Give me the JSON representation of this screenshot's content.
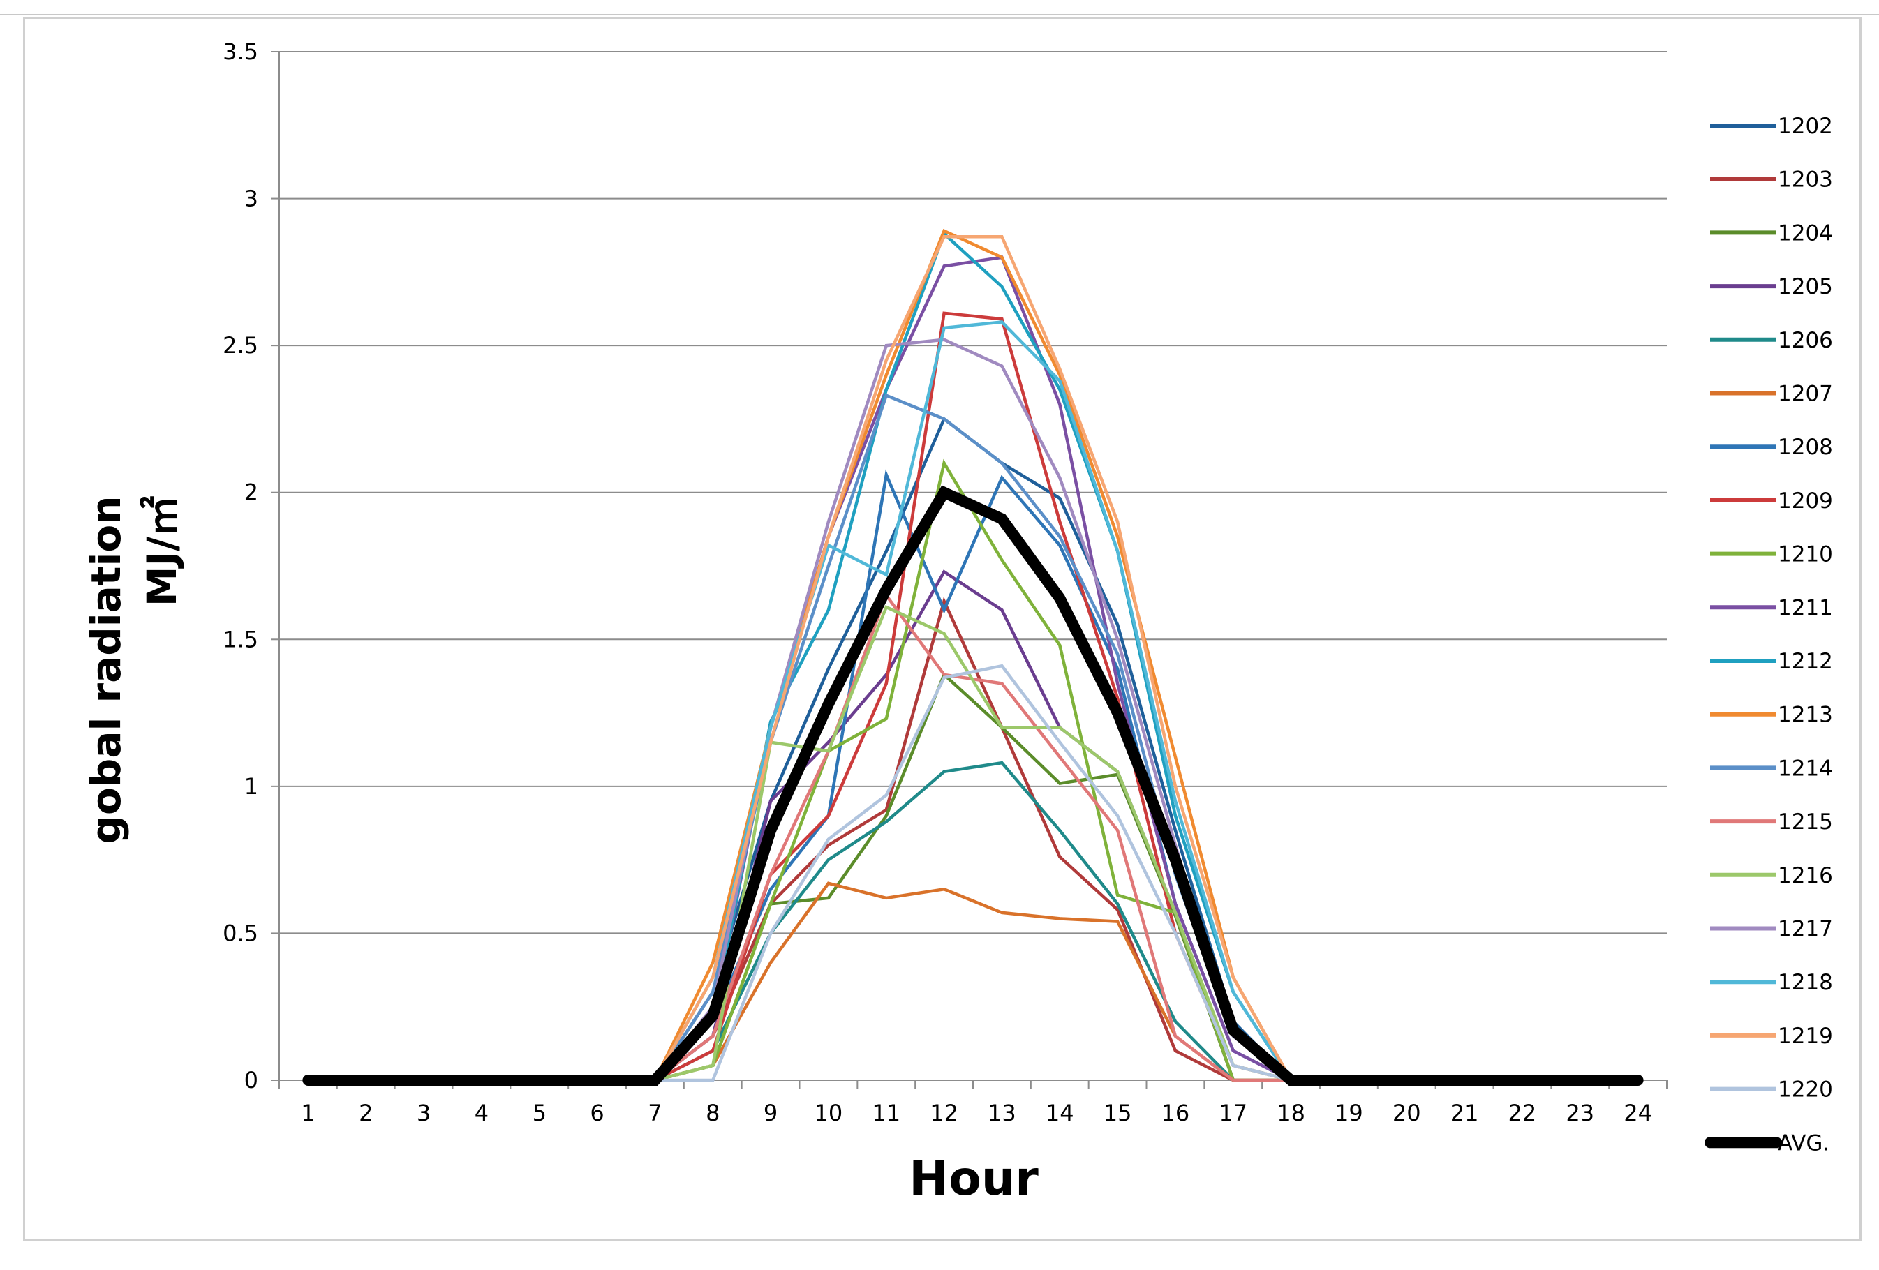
{
  "chart_data": {
    "type": "line",
    "title": "",
    "xlabel": "Hour",
    "ylabel_line1": "gobal radiation",
    "ylabel_line2": "MJ/㎡",
    "x": [
      1,
      2,
      3,
      4,
      5,
      6,
      7,
      8,
      9,
      10,
      11,
      12,
      13,
      14,
      15,
      16,
      17,
      18,
      19,
      20,
      21,
      22,
      23,
      24
    ],
    "xticks": [
      "1",
      "2",
      "3",
      "4",
      "5",
      "6",
      "7",
      "8",
      "9",
      "10",
      "11",
      "12",
      "13",
      "14",
      "15",
      "16",
      "17",
      "18",
      "19",
      "20",
      "21",
      "22",
      "23",
      "24"
    ],
    "ylim": [
      0,
      3.5
    ],
    "yticks": [
      "0",
      "0.5",
      "1",
      "1.5",
      "2",
      "2.5",
      "3",
      "3.5"
    ],
    "grid": "horizontal",
    "legend_position": "right",
    "series": [
      {
        "name": "1202",
        "color": "#1f5f9a",
        "values": [
          0,
          0,
          0,
          0,
          0,
          0,
          0,
          0.3,
          0.95,
          1.4,
          1.8,
          2.25,
          2.1,
          1.98,
          1.55,
          0.85,
          0.2,
          0,
          0,
          0,
          0,
          0,
          0,
          0
        ]
      },
      {
        "name": "1203",
        "color": "#b03a3a",
        "values": [
          0,
          0,
          0,
          0,
          0,
          0,
          0,
          0.15,
          0.6,
          0.8,
          0.92,
          1.63,
          1.2,
          0.76,
          0.58,
          0.1,
          0,
          0,
          0,
          0,
          0,
          0,
          0,
          0
        ]
      },
      {
        "name": "1204",
        "color": "#5b8c2a",
        "values": [
          0,
          0,
          0,
          0,
          0,
          0,
          0,
          0.05,
          0.6,
          0.62,
          0.9,
          1.38,
          1.2,
          1.01,
          1.04,
          0.56,
          0,
          0,
          0,
          0,
          0,
          0,
          0,
          0
        ]
      },
      {
        "name": "1205",
        "color": "#6a3d8f",
        "values": [
          0,
          0,
          0,
          0,
          0,
          0,
          0,
          0.15,
          0.95,
          1.15,
          1.38,
          1.73,
          1.6,
          1.2,
          1.05,
          0.57,
          0,
          0,
          0,
          0,
          0,
          0,
          0,
          0
        ]
      },
      {
        "name": "1206",
        "color": "#1f8a8a",
        "values": [
          0,
          0,
          0,
          0,
          0,
          0,
          0,
          0.1,
          0.5,
          0.75,
          0.88,
          1.05,
          1.08,
          0.85,
          0.6,
          0.2,
          0,
          0,
          0,
          0,
          0,
          0,
          0,
          0
        ]
      },
      {
        "name": "1207",
        "color": "#d9722a",
        "values": [
          0,
          0,
          0,
          0,
          0,
          0,
          0,
          0.05,
          0.4,
          0.67,
          0.62,
          0.65,
          0.57,
          0.55,
          0.54,
          0.15,
          0,
          0,
          0,
          0,
          0,
          0,
          0,
          0
        ]
      },
      {
        "name": "1208",
        "color": "#2e75b6",
        "values": [
          0,
          0,
          0,
          0,
          0,
          0,
          0,
          0.2,
          0.65,
          0.9,
          2.06,
          1.6,
          2.05,
          1.82,
          1.4,
          0.6,
          0.1,
          0,
          0,
          0,
          0,
          0,
          0,
          0
        ]
      },
      {
        "name": "1209",
        "color": "#cc3b3b",
        "values": [
          0,
          0,
          0,
          0,
          0,
          0,
          0,
          0.1,
          0.7,
          0.9,
          1.35,
          2.61,
          2.59,
          1.9,
          1.3,
          0.5,
          0.05,
          0,
          0,
          0,
          0,
          0,
          0,
          0
        ]
      },
      {
        "name": "1210",
        "color": "#7fb23a",
        "values": [
          0,
          0,
          0,
          0,
          0,
          0,
          0,
          0.05,
          0.6,
          1.12,
          1.23,
          2.1,
          1.77,
          1.48,
          0.63,
          0.57,
          0,
          0,
          0,
          0,
          0,
          0,
          0,
          0
        ]
      },
      {
        "name": "1211",
        "color": "#7a4fa3",
        "values": [
          0,
          0,
          0,
          0,
          0,
          0,
          0,
          0.2,
          1.2,
          1.85,
          2.35,
          2.77,
          2.8,
          2.3,
          1.35,
          0.6,
          0.1,
          0,
          0,
          0,
          0,
          0,
          0,
          0
        ]
      },
      {
        "name": "1212",
        "color": "#1fa0c0",
        "values": [
          0,
          0,
          0,
          0,
          0,
          0,
          0,
          0.2,
          1.22,
          1.6,
          2.35,
          2.88,
          2.7,
          2.35,
          1.8,
          0.9,
          0.3,
          0,
          0,
          0,
          0,
          0,
          0,
          0
        ]
      },
      {
        "name": "1213",
        "color": "#f08a30",
        "values": [
          0,
          0,
          0,
          0,
          0,
          0,
          0,
          0.4,
          1.2,
          1.85,
          2.4,
          2.89,
          2.8,
          2.4,
          1.85,
          1.1,
          0.35,
          0,
          0,
          0,
          0,
          0,
          0,
          0
        ]
      },
      {
        "name": "1214",
        "color": "#5b8fc8",
        "values": [
          0,
          0,
          0,
          0,
          0,
          0,
          0,
          0.3,
          1.15,
          1.75,
          2.33,
          2.25,
          2.1,
          1.85,
          1.45,
          0.7,
          0.15,
          0,
          0,
          0,
          0,
          0,
          0,
          0
        ]
      },
      {
        "name": "1215",
        "color": "#e07878",
        "values": [
          0,
          0,
          0,
          0,
          0,
          0,
          0,
          0.15,
          0.7,
          1.12,
          1.65,
          1.38,
          1.35,
          1.1,
          0.85,
          0.15,
          0,
          0,
          0,
          0,
          0,
          0,
          0,
          0
        ]
      },
      {
        "name": "1216",
        "color": "#9cc86a",
        "values": [
          0,
          0,
          0,
          0,
          0,
          0,
          0,
          0.05,
          1.15,
          1.12,
          1.61,
          1.52,
          1.2,
          1.2,
          1.05,
          0.57,
          0.05,
          0,
          0,
          0,
          0,
          0,
          0,
          0
        ]
      },
      {
        "name": "1217",
        "color": "#a08ac0",
        "values": [
          0,
          0,
          0,
          0,
          0,
          0,
          0,
          0.25,
          1.2,
          1.9,
          2.5,
          2.52,
          2.43,
          2.05,
          1.5,
          0.8,
          0.15,
          0,
          0,
          0,
          0,
          0,
          0,
          0
        ]
      },
      {
        "name": "1218",
        "color": "#50b8d8",
        "values": [
          0,
          0,
          0,
          0,
          0,
          0,
          0,
          0.35,
          1.2,
          1.82,
          1.72,
          2.56,
          2.58,
          2.38,
          1.8,
          0.95,
          0.3,
          0,
          0,
          0,
          0,
          0,
          0,
          0
        ]
      },
      {
        "name": "1219",
        "color": "#f6a672",
        "values": [
          0,
          0,
          0,
          0,
          0,
          0,
          0,
          0.35,
          1.15,
          1.85,
          2.45,
          2.87,
          2.87,
          2.42,
          1.9,
          1.0,
          0.35,
          0,
          0,
          0,
          0,
          0,
          0,
          0
        ]
      },
      {
        "name": "1220",
        "color": "#b0c4de",
        "values": [
          0,
          0,
          0,
          0,
          0,
          0,
          0,
          0,
          0.5,
          0.82,
          0.97,
          1.37,
          1.41,
          1.15,
          0.9,
          0.5,
          0.05,
          0,
          0,
          0,
          0,
          0,
          0,
          0
        ]
      },
      {
        "name": "AVG.",
        "color": "#000000",
        "values": [
          0,
          0,
          0,
          0,
          0,
          0,
          0,
          0.22,
          0.85,
          1.28,
          1.67,
          2.0,
          1.91,
          1.64,
          1.25,
          0.75,
          0.17,
          0,
          0,
          0,
          0,
          0,
          0,
          0
        ]
      }
    ]
  }
}
